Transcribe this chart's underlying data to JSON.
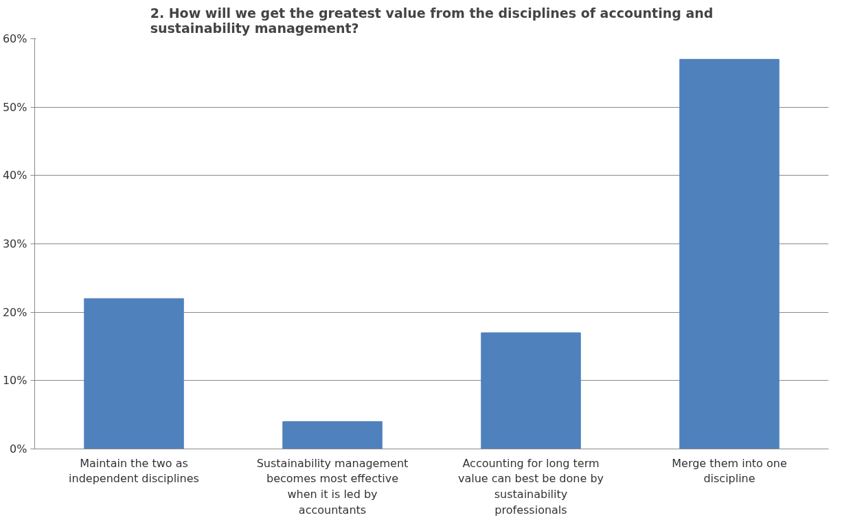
{
  "chart_data": {
    "type": "bar",
    "title": "2. How will we get the greatest value from the disciplines of accounting and sustainability management?",
    "categories": [
      "Maintain the two as independent disciplines",
      "Sustainability management becomes most effective when it is led by accountants",
      "Accounting for long term value can best be done by sustainability professionals",
      "Merge them into one discipline"
    ],
    "values": [
      22,
      4,
      17,
      57
    ],
    "color": "#4f81bd",
    "ylim": [
      0,
      60
    ],
    "yticks": [
      {
        "value": 0,
        "label": "0%"
      },
      {
        "value": 10,
        "label": "10%"
      },
      {
        "value": 20,
        "label": "20%"
      },
      {
        "value": 30,
        "label": "30%"
      },
      {
        "value": 40,
        "label": "40%"
      },
      {
        "value": 50,
        "label": "50%"
      },
      {
        "value": 60,
        "label": "60%"
      }
    ],
    "grid": "y"
  }
}
